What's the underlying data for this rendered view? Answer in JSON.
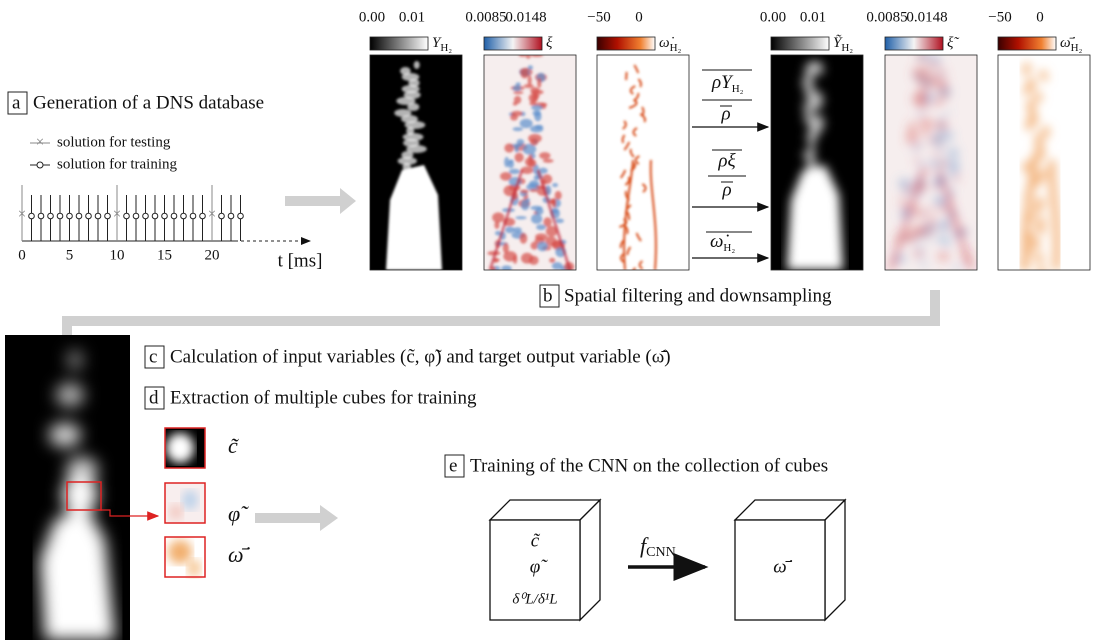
{
  "steps": [
    {
      "letter": "a",
      "text": "Generation of a DNS database"
    },
    {
      "letter": "b",
      "text": "Spatial filtering and downsampling"
    },
    {
      "letter": "c",
      "text": "Calculation of input variables (c̃, φ̃) and target output variable (ω̄̇)"
    },
    {
      "letter": "d",
      "text": "Extraction of multiple cubes for training"
    },
    {
      "letter": "e",
      "text": "Training of the CNN on the collection of cubes"
    }
  ],
  "legend": [
    "solution for testing",
    "solution for training"
  ],
  "timeline": {
    "ticks": [
      "0",
      "5",
      "10",
      "15",
      "20"
    ],
    "axis_label": "t [ms]"
  },
  "colorbars": [
    {
      "min": "0.00",
      "max": "0.01",
      "symbol": "Y",
      "sub": "H₂"
    },
    {
      "min": "0.0085",
      "max": "0.0148",
      "symbol": "ξ"
    },
    {
      "min": "−50",
      "max": "0",
      "symbol": "ω̇",
      "sub": "H₂"
    },
    {
      "min": "0.00",
      "max": "0.01",
      "symbol": "Ỹ",
      "sub": "H₂"
    },
    {
      "min": "0.0085",
      "max": "0.0148",
      "symbol": "ξ̃"
    },
    {
      "min": "−50",
      "max": "0",
      "symbol": "ω̄̇",
      "sub": "H₂"
    }
  ],
  "filters": [
    {
      "num": "ρY",
      "sub": "H₂",
      "den": "ρ"
    },
    {
      "num": "ρξ",
      "den": "ρ"
    },
    {
      "num": "ω̇",
      "sub": "H₂"
    }
  ],
  "cube_labels": [
    "c̃",
    "φ̃",
    "ω̄̇"
  ],
  "cnn": {
    "inputs": [
      "c̃",
      "φ̃",
      "δ⁰L/δ¹L"
    ],
    "function": "f",
    "function_sub": "CNN",
    "output": "ω̄̇"
  }
}
